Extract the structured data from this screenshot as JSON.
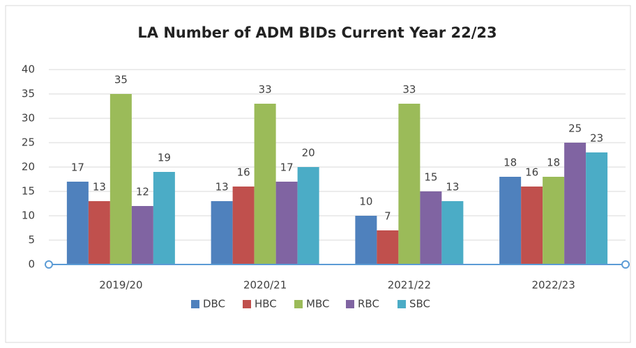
{
  "chart_data": {
    "type": "bar",
    "title": "LA Number of ADM BIDs Current Year 22/23",
    "categories": [
      "2019/20",
      "2020/21",
      "2021/22",
      "2022/23"
    ],
    "series": [
      {
        "name": "DBC",
        "color": "#4f81bd",
        "values": [
          17,
          13,
          10,
          18
        ]
      },
      {
        "name": "HBC",
        "color": "#c0504d",
        "values": [
          13,
          16,
          7,
          16
        ]
      },
      {
        "name": "MBC",
        "color": "#9bbb59",
        "values": [
          35,
          33,
          33,
          18
        ]
      },
      {
        "name": "RBC",
        "color": "#8064a2",
        "values": [
          12,
          17,
          15,
          25
        ]
      },
      {
        "name": "SBC",
        "color": "#4bacc6",
        "values": [
          19,
          20,
          13,
          23
        ]
      }
    ],
    "ylim": [
      0,
      40
    ],
    "yticks": [
      0,
      5,
      10,
      15,
      20,
      25,
      30,
      35,
      40
    ],
    "grid": true,
    "legend": "bottom"
  }
}
